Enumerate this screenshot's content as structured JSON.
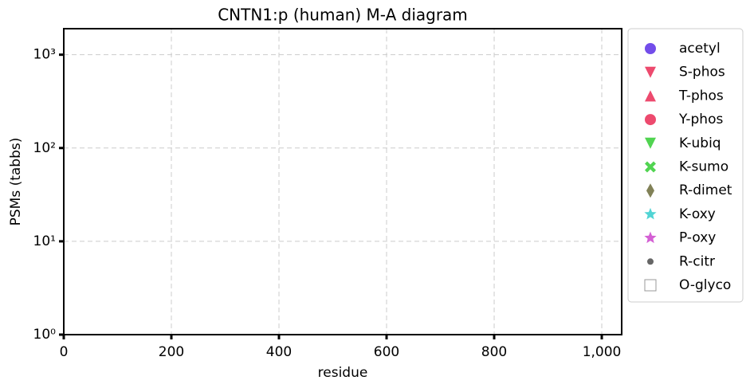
{
  "chart_data": {
    "type": "scatter",
    "title": "CNTN1:p (human) M-A diagram",
    "x_label": "residue",
    "y_label": "PSMs (tabbs)",
    "xlim": [
      0,
      1037
    ],
    "ylim": [
      1,
      1900
    ],
    "y_scale": "log",
    "xticks": [
      0,
      200,
      400,
      600,
      800,
      {
        "value": 1000,
        "label": "1,000"
      }
    ],
    "yticks": [
      {
        "value": 1,
        "label": "10⁰"
      },
      {
        "value": 10,
        "label": "10¹"
      },
      {
        "value": 100,
        "label": "10²"
      },
      {
        "value": 1000,
        "label": "10³"
      }
    ],
    "grid": true,
    "legend": "outside right",
    "series": [
      {
        "name": "acetyl",
        "color": "#5a2ee6",
        "marker": "circle",
        "x": [],
        "values": []
      },
      {
        "name": "S-phos",
        "color": "#ea2a55",
        "marker": "triangle-down",
        "x": [],
        "values": []
      },
      {
        "name": "T-phos",
        "color": "#ea2a55",
        "marker": "triangle-up",
        "x": [],
        "values": []
      },
      {
        "name": "Y-phos",
        "color": "#ea2a55",
        "marker": "circle",
        "x": [],
        "values": []
      },
      {
        "name": "K-ubiq",
        "color": "#33cc33",
        "marker": "triangle-down",
        "x": [],
        "values": []
      },
      {
        "name": "K-sumo",
        "color": "#33cc33",
        "marker": "x",
        "x": [],
        "values": []
      },
      {
        "name": "R-dimet",
        "color": "#6b6b3a",
        "marker": "thin-diamond",
        "x": [],
        "values": []
      },
      {
        "name": "K-oxy",
        "color": "#33cccc",
        "marker": "star",
        "x": [],
        "values": []
      },
      {
        "name": "P-oxy",
        "color": "#cc44cc",
        "marker": "star",
        "x": [],
        "values": []
      },
      {
        "name": "R-citr",
        "color": "#666666",
        "marker": "dot",
        "x": [],
        "values": []
      },
      {
        "name": "O-glyco",
        "color": "#999999",
        "marker": "open-square",
        "x": [],
        "values": []
      }
    ]
  }
}
